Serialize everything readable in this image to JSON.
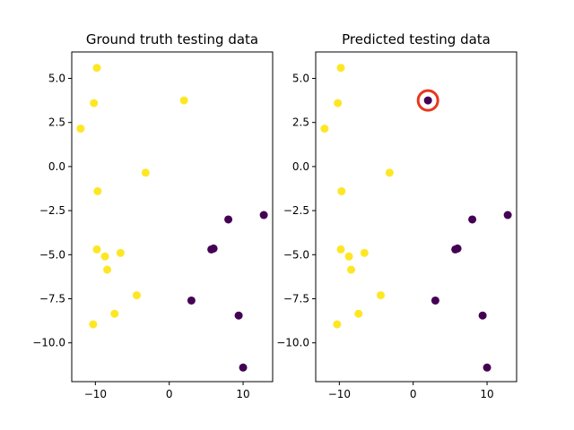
{
  "chart_data": [
    {
      "type": "scatter",
      "title": "Ground truth testing data",
      "xlim": [
        -13.2,
        14.0
      ],
      "ylim": [
        -12.2,
        6.5
      ],
      "xticks": [
        -10,
        0,
        10
      ],
      "yticks": [
        5.0,
        2.5,
        0.0,
        -2.5,
        -5.0,
        -7.5,
        -10.0
      ],
      "xtick_labels": [
        "−10",
        "0",
        "10"
      ],
      "ytick_labels": [
        "5.0",
        "2.5",
        "0.0",
        "−2.5",
        "−5.0",
        "−7.5",
        "−10.0"
      ],
      "colors": {
        "class_0": "#440154",
        "class_1": "#fde725"
      },
      "points": [
        {
          "x": -9.8,
          "y": 5.6,
          "class": 1
        },
        {
          "x": -10.2,
          "y": 3.6,
          "class": 1
        },
        {
          "x": -12.0,
          "y": 2.15,
          "class": 1
        },
        {
          "x": 2.0,
          "y": 3.75,
          "class": 1
        },
        {
          "x": -3.2,
          "y": -0.35,
          "class": 1
        },
        {
          "x": -9.7,
          "y": -1.4,
          "class": 1
        },
        {
          "x": -9.8,
          "y": -4.7,
          "class": 1
        },
        {
          "x": -8.7,
          "y": -5.1,
          "class": 1
        },
        {
          "x": -6.6,
          "y": -4.9,
          "class": 1
        },
        {
          "x": -8.4,
          "y": -5.85,
          "class": 1
        },
        {
          "x": -4.4,
          "y": -7.3,
          "class": 1
        },
        {
          "x": -7.4,
          "y": -8.35,
          "class": 1
        },
        {
          "x": -10.3,
          "y": -8.95,
          "class": 1
        },
        {
          "x": 8.0,
          "y": -3.0,
          "class": 0
        },
        {
          "x": 12.8,
          "y": -2.75,
          "class": 0
        },
        {
          "x": 5.7,
          "y": -4.7,
          "class": 0
        },
        {
          "x": 6.0,
          "y": -4.65,
          "class": 0
        },
        {
          "x": 3.0,
          "y": -7.6,
          "class": 0
        },
        {
          "x": 9.4,
          "y": -8.45,
          "class": 0
        },
        {
          "x": 10.0,
          "y": -11.4,
          "class": 0
        }
      ]
    },
    {
      "type": "scatter",
      "title": "Predicted testing data",
      "xlim": [
        -13.2,
        14.0
      ],
      "ylim": [
        -12.2,
        6.5
      ],
      "xticks": [
        -10,
        0,
        10
      ],
      "yticks": [
        5.0,
        2.5,
        0.0,
        -2.5,
        -5.0,
        -7.5,
        -10.0
      ],
      "xtick_labels": [
        "−10",
        "0",
        "10"
      ],
      "ytick_labels": [
        "5.0",
        "2.5",
        "0.0",
        "−2.5",
        "−5.0",
        "−7.5",
        "−10.0"
      ],
      "colors": {
        "class_0": "#440154",
        "class_1": "#fde725",
        "highlight": "#e8371f"
      },
      "highlight": {
        "x": 2.0,
        "y": 3.75
      },
      "points": [
        {
          "x": -9.8,
          "y": 5.6,
          "class": 1
        },
        {
          "x": -10.2,
          "y": 3.6,
          "class": 1
        },
        {
          "x": -12.0,
          "y": 2.15,
          "class": 1
        },
        {
          "x": 2.0,
          "y": 3.75,
          "class": 0
        },
        {
          "x": -3.2,
          "y": -0.35,
          "class": 1
        },
        {
          "x": -9.7,
          "y": -1.4,
          "class": 1
        },
        {
          "x": -9.8,
          "y": -4.7,
          "class": 1
        },
        {
          "x": -8.7,
          "y": -5.1,
          "class": 1
        },
        {
          "x": -6.6,
          "y": -4.9,
          "class": 1
        },
        {
          "x": -8.4,
          "y": -5.85,
          "class": 1
        },
        {
          "x": -4.4,
          "y": -7.3,
          "class": 1
        },
        {
          "x": -7.4,
          "y": -8.35,
          "class": 1
        },
        {
          "x": -10.3,
          "y": -8.95,
          "class": 1
        },
        {
          "x": 8.0,
          "y": -3.0,
          "class": 0
        },
        {
          "x": 12.8,
          "y": -2.75,
          "class": 0
        },
        {
          "x": 5.7,
          "y": -4.7,
          "class": 0
        },
        {
          "x": 6.0,
          "y": -4.65,
          "class": 0
        },
        {
          "x": 3.0,
          "y": -7.6,
          "class": 0
        },
        {
          "x": 9.4,
          "y": -8.45,
          "class": 0
        },
        {
          "x": 10.0,
          "y": -11.4,
          "class": 0
        }
      ]
    }
  ]
}
